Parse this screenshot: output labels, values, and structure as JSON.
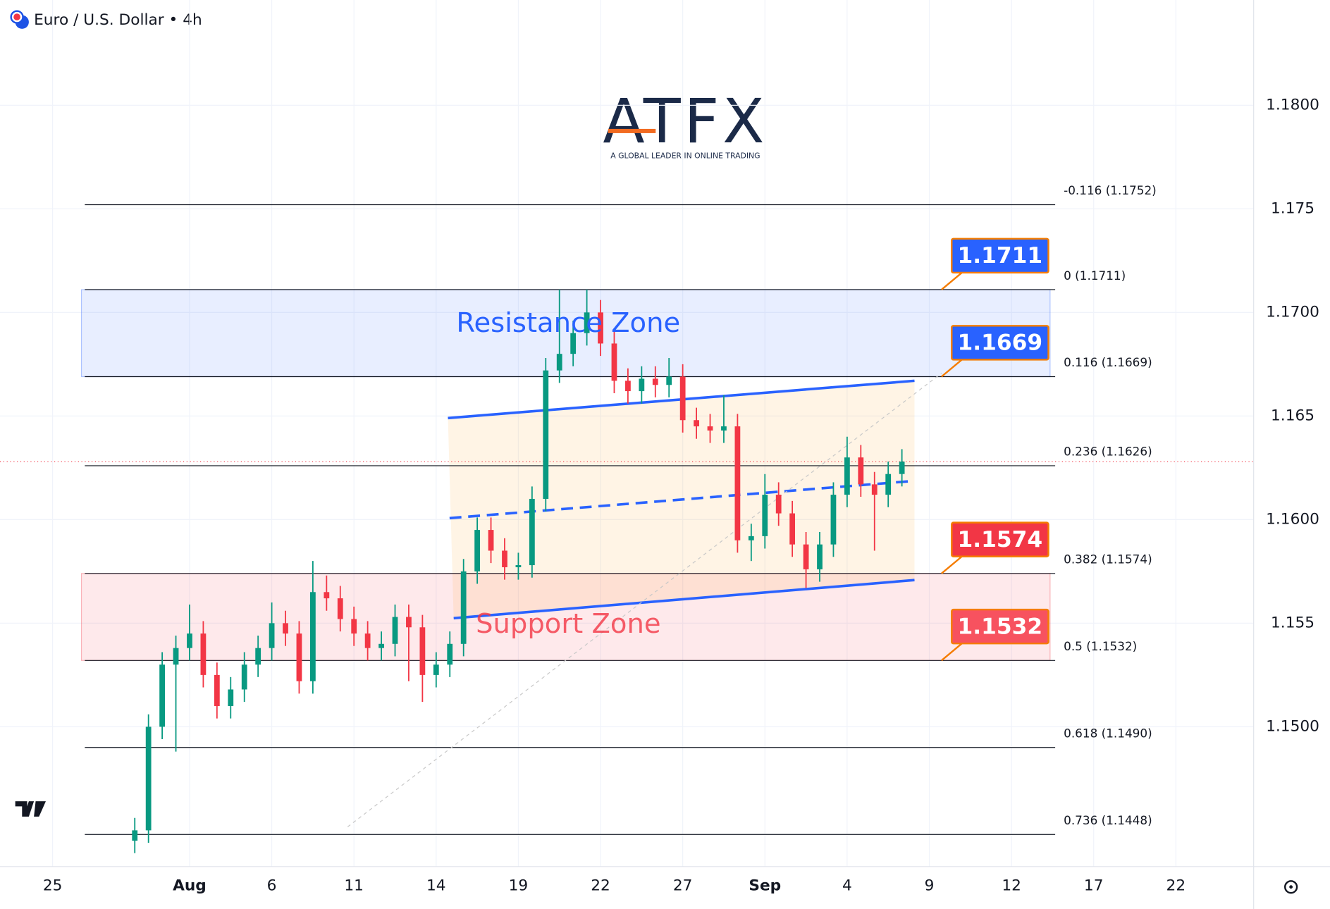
{
  "header": {
    "title": "Euro / U.S. Dollar • 4h"
  },
  "logo": {
    "name": "ATFX",
    "tagline": "A GLOBAL LEADER IN ONLINE TRADING"
  },
  "chart_data": {
    "type": "candlestick",
    "x": [
      3.0,
      3.5,
      4.0,
      4.5,
      5.0,
      5.5,
      6.0,
      6.5,
      7.0,
      7.5,
      8.0,
      8.5,
      9.0,
      9.5,
      10.0,
      10.5,
      11.0,
      11.5,
      12.0,
      12.5,
      13.0,
      13.5,
      14.0,
      14.5,
      15.0,
      15.5,
      16.0,
      16.5,
      17.0,
      17.5,
      18.0,
      18.5,
      19.0,
      19.5,
      20.0,
      20.5,
      21.0,
      21.5,
      22.0,
      22.5,
      23.0,
      23.5,
      24.0,
      24.5,
      25.0,
      25.5,
      26.0,
      26.5,
      27.0,
      27.5,
      28.0,
      28.5,
      29.0,
      29.5,
      30.0,
      30.5,
      31.0
    ],
    "open": [
      1.1445,
      1.145,
      1.15,
      1.153,
      1.1538,
      1.1545,
      1.1525,
      1.151,
      1.1518,
      1.153,
      1.1538,
      1.155,
      1.1545,
      1.1522,
      1.1565,
      1.1562,
      1.1552,
      1.1545,
      1.1538,
      1.154,
      1.1553,
      1.1548,
      1.1525,
      1.153,
      1.154,
      1.1575,
      1.1595,
      1.1585,
      1.1577,
      1.1578,
      1.161,
      1.1672,
      1.168,
      1.169,
      1.17,
      1.1685,
      1.1667,
      1.1662,
      1.1668,
      1.1665,
      1.1669,
      1.1648,
      1.1645,
      1.1643,
      1.1645,
      1.159,
      1.1592,
      1.1612,
      1.1603,
      1.1588,
      1.1576,
      1.1588,
      1.1612,
      1.163,
      1.1617,
      1.1612,
      1.1622
    ],
    "high": [
      1.1456,
      1.1506,
      1.1536,
      1.1544,
      1.1559,
      1.1551,
      1.1531,
      1.1524,
      1.1536,
      1.1544,
      1.156,
      1.1556,
      1.1551,
      1.158,
      1.1573,
      1.1568,
      1.1558,
      1.1551,
      1.1546,
      1.1559,
      1.1559,
      1.1554,
      1.1536,
      1.1546,
      1.1581,
      1.1601,
      1.1601,
      1.1591,
      1.1584,
      1.1616,
      1.1678,
      1.1711,
      1.1696,
      1.1711,
      1.1706,
      1.1691,
      1.1673,
      1.1674,
      1.1674,
      1.1678,
      1.1675,
      1.1654,
      1.1651,
      1.166,
      1.1651,
      1.1598,
      1.1622,
      1.1618,
      1.1609,
      1.1594,
      1.1594,
      1.1618,
      1.164,
      1.1636,
      1.1623,
      1.1628,
      1.1634
    ],
    "low": [
      1.1439,
      1.1444,
      1.1494,
      1.1488,
      1.1532,
      1.1519,
      1.1504,
      1.1504,
      1.1512,
      1.1524,
      1.1532,
      1.1539,
      1.1516,
      1.1516,
      1.1556,
      1.1546,
      1.1539,
      1.1532,
      1.1532,
      1.1534,
      1.1522,
      1.1512,
      1.1519,
      1.1524,
      1.1534,
      1.1569,
      1.1579,
      1.1571,
      1.1571,
      1.1572,
      1.1604,
      1.1666,
      1.1674,
      1.1684,
      1.1679,
      1.1661,
      1.1656,
      1.1656,
      1.1659,
      1.1659,
      1.1642,
      1.1639,
      1.1637,
      1.1637,
      1.1584,
      1.158,
      1.1586,
      1.1597,
      1.1582,
      1.1567,
      1.157,
      1.1582,
      1.1606,
      1.1611,
      1.1585,
      1.1606,
      1.1616
    ],
    "close": [
      1.145,
      1.15,
      1.153,
      1.1538,
      1.1545,
      1.1525,
      1.151,
      1.1518,
      1.153,
      1.1538,
      1.155,
      1.1545,
      1.1522,
      1.1565,
      1.1562,
      1.1552,
      1.1545,
      1.1538,
      1.154,
      1.1553,
      1.1548,
      1.1525,
      1.153,
      1.154,
      1.1575,
      1.1595,
      1.1585,
      1.1577,
      1.1578,
      1.161,
      1.1672,
      1.168,
      1.169,
      1.17,
      1.1685,
      1.1667,
      1.1662,
      1.1668,
      1.1665,
      1.1669,
      1.1648,
      1.1645,
      1.1643,
      1.1645,
      1.159,
      1.1592,
      1.1612,
      1.1603,
      1.1588,
      1.1576,
      1.1588,
      1.1612,
      1.163,
      1.1617,
      1.1612,
      1.1622,
      1.1628
    ],
    "up_color": "#089981",
    "down_color": "#f23645",
    "xlim": [
      -1.9195,
      43.839
    ],
    "xticks": [
      {
        "value": 0,
        "label": "25"
      },
      {
        "value": 5,
        "label": "Aug"
      },
      {
        "value": 8,
        "label": "6"
      },
      {
        "value": 11,
        "label": "11"
      },
      {
        "value": 14,
        "label": "14"
      },
      {
        "value": 17,
        "label": "19"
      },
      {
        "value": 20,
        "label": "22"
      },
      {
        "value": 23,
        "label": "27"
      },
      {
        "value": 26,
        "label": "Sep"
      },
      {
        "value": 29,
        "label": "4"
      },
      {
        "value": 32,
        "label": "9"
      },
      {
        "value": 35,
        "label": "12"
      },
      {
        "value": 38,
        "label": "17"
      },
      {
        "value": 41,
        "label": "22"
      }
    ],
    "ylim": [
      1.14325,
      1.18508
    ],
    "yticks": [
      {
        "value": 1.15,
        "label": "1.1500"
      },
      1.155,
      {
        "value": 1.16,
        "label": "1.1600"
      },
      1.165,
      {
        "value": 1.17,
        "label": "1.1700"
      },
      1.175,
      {
        "value": 1.18,
        "label": "1.1800"
      }
    ],
    "grid": true,
    "fib_levels": [
      {
        "value": 1.1752,
        "label": "-0.116 (1.1752)"
      },
      {
        "value": 1.1711,
        "label": "0 (1.1711)"
      },
      {
        "value": 1.1669,
        "label": "0.116 (1.1669)"
      },
      {
        "value": 1.1626,
        "label": "0.236 (1.1626)"
      },
      {
        "value": 1.1574,
        "label": "0.382 (1.1574)"
      },
      {
        "value": 1.1532,
        "label": "0.5 (1.1532)"
      },
      {
        "value": 1.149,
        "label": "0.618 (1.1490)"
      },
      {
        "value": 1.1448,
        "label": "0.736 (1.1448)"
      }
    ],
    "zones": [
      {
        "label": "Resistance Zone",
        "range": [
          1.1669,
          1.1711
        ],
        "color": "#2962ff"
      },
      {
        "label": "Support Zone",
        "range": [
          1.1532,
          1.1574
        ],
        "color": "#f23645"
      }
    ],
    "price_tags": [
      {
        "value": 1.1711,
        "color": "#2962ff"
      },
      {
        "value": 1.1669,
        "color": "#2962ff"
      },
      {
        "value": 1.1574,
        "color": "#f23645"
      },
      {
        "value": 1.1532,
        "color": "#f7525f"
      }
    ],
    "trend_lines": [
      {
        "x": [
          14.43,
          31.46
        ],
        "y": [
          1.1649,
          1.1667
        ],
        "color": "#2962ff",
        "dashed": false
      },
      {
        "x": [
          14.49,
          31.46
        ],
        "y": [
          1.16007,
          1.16187
        ],
        "color": "#2962ff",
        "dashed": true
      },
      {
        "x": [
          14.64,
          31.46
        ],
        "y": [
          1.15524,
          1.15708
        ],
        "color": "#2962ff",
        "dashed": false
      },
      {
        "x": [
          10.77,
          32.45
        ],
        "y": [
          1.14517,
          1.16707
        ],
        "color": "#c8c8c8",
        "dashed": true
      }
    ]
  }
}
